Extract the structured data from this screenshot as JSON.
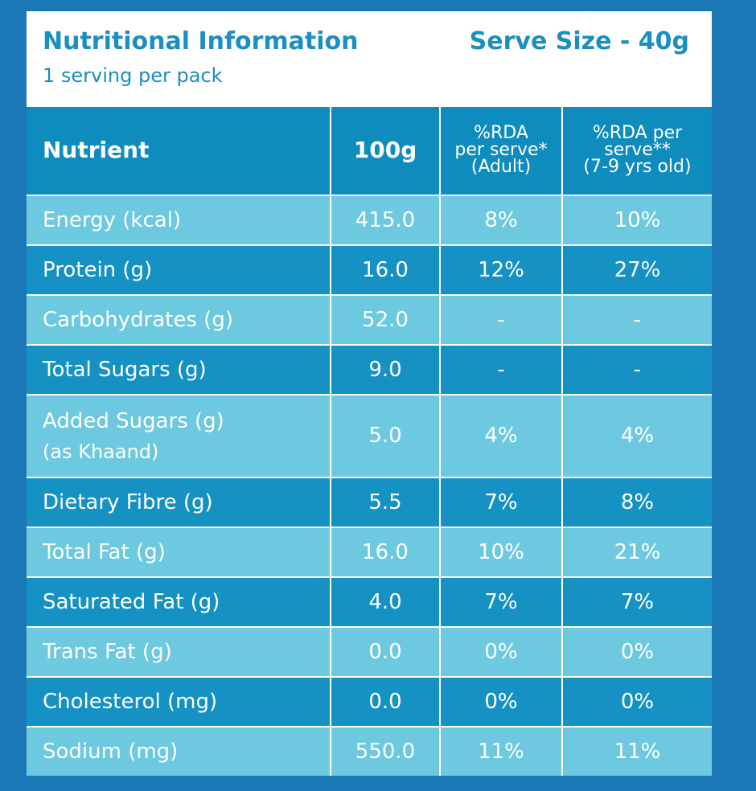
{
  "header": {
    "title": "Nutritional Information",
    "subtitle": "1 serving per pack",
    "serve_size": "Serve Size - 40g"
  },
  "table": {
    "columns": [
      [
        "Nutrient"
      ],
      [
        "100g"
      ],
      [
        "%RDA",
        "per serve*",
        "(Adult)"
      ],
      [
        "%RDA per",
        "serve**",
        "(7-9 yrs old)"
      ]
    ],
    "rows": [
      {
        "cells": [
          "Energy (kcal)",
          "415.0",
          "8%",
          "10%"
        ]
      },
      {
        "cells": [
          "Protein (g)",
          "16.0",
          "12%",
          "27%"
        ]
      },
      {
        "cells": [
          "Carbohydrates (g)",
          "52.0",
          "-",
          "-"
        ]
      },
      {
        "cells": [
          "Total Sugars (g)",
          "9.0",
          "-",
          "-"
        ]
      },
      {
        "cells": [
          "Added Sugars (g)",
          "5.0",
          "4%",
          "4%"
        ],
        "sub": "(as Khaand)"
      },
      {
        "cells": [
          "Dietary Fibre (g)",
          "5.5",
          "7%",
          "8%"
        ]
      },
      {
        "cells": [
          "Total Fat (g)",
          "16.0",
          "10%",
          "21%"
        ]
      },
      {
        "cells": [
          "Saturated Fat (g)",
          "4.0",
          "7%",
          "7%"
        ]
      },
      {
        "cells": [
          "Trans Fat (g)",
          "0.0",
          "0%",
          "0%"
        ]
      },
      {
        "cells": [
          "Cholesterol (mg)",
          "0.0",
          "0%",
          "0%"
        ]
      },
      {
        "cells": [
          "Sodium (mg)",
          "550.0",
          "11%",
          "11%"
        ]
      }
    ]
  }
}
